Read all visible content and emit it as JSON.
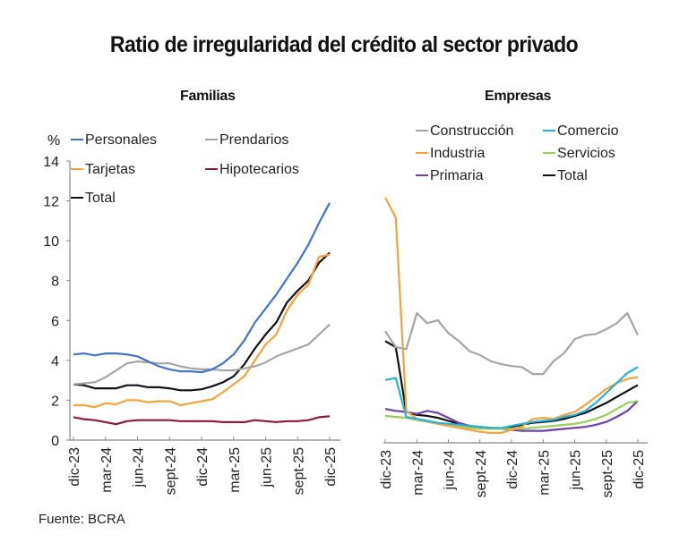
{
  "title": "Ratio de irregularidad del crédito al sector privado",
  "source": "Fuente: BCRA",
  "chart_data": [
    {
      "type": "line",
      "title": "Familias",
      "ylabel": "%",
      "xlabel": "",
      "ylim": [
        0,
        14
      ],
      "yticks": [
        0,
        2,
        4,
        6,
        8,
        10,
        12,
        14
      ],
      "xtick_labels": [
        "dic-23",
        "mar-24",
        "jun-24",
        "sept-24",
        "dic-24",
        "mar-25",
        "jun-25",
        "sept-25",
        "dic-25"
      ],
      "x_periods": 25,
      "grid": false,
      "legend": "top-left",
      "series": [
        {
          "name": "Personales",
          "color": "#4472c4",
          "values": [
            4.3,
            4.35,
            4.25,
            4.35,
            4.35,
            4.3,
            4.2,
            3.95,
            3.7,
            3.55,
            3.45,
            3.45,
            3.4,
            3.55,
            3.85,
            4.3,
            5.0,
            5.9,
            6.6,
            7.3,
            8.1,
            8.9,
            9.8,
            10.9,
            11.9
          ]
        },
        {
          "name": "Prendarios",
          "color": "#a5a5a5",
          "values": [
            2.8,
            2.85,
            2.9,
            3.15,
            3.5,
            3.85,
            3.95,
            3.9,
            3.85,
            3.85,
            3.7,
            3.6,
            3.55,
            3.55,
            3.5,
            3.5,
            3.6,
            3.7,
            3.9,
            4.2,
            4.4,
            4.6,
            4.8,
            5.3,
            5.8
          ]
        },
        {
          "name": "Tarjetas",
          "color": "#f4a23c",
          "values": [
            1.75,
            1.75,
            1.65,
            1.85,
            1.8,
            2.0,
            2.0,
            1.9,
            1.95,
            1.95,
            1.75,
            1.85,
            1.95,
            2.05,
            2.4,
            2.8,
            3.2,
            4.0,
            4.8,
            5.3,
            6.5,
            7.3,
            7.8,
            9.2,
            9.3
          ]
        },
        {
          "name": "Hipotecarios",
          "color": "#8b1a3a",
          "values": [
            1.15,
            1.05,
            1.0,
            0.9,
            0.8,
            0.95,
            1.0,
            1.0,
            1.0,
            1.0,
            0.95,
            0.95,
            0.95,
            0.95,
            0.9,
            0.9,
            0.9,
            1.0,
            0.95,
            0.9,
            0.95,
            0.95,
            1.0,
            1.15,
            1.2
          ]
        },
        {
          "name": "Total",
          "color": "#111111",
          "values": [
            2.8,
            2.75,
            2.6,
            2.6,
            2.6,
            2.75,
            2.75,
            2.65,
            2.65,
            2.6,
            2.5,
            2.5,
            2.55,
            2.7,
            2.9,
            3.2,
            3.8,
            4.6,
            5.3,
            5.9,
            6.9,
            7.5,
            8.0,
            8.9,
            9.4
          ]
        }
      ]
    },
    {
      "type": "line",
      "title": "Empresas",
      "ylabel": "",
      "xlabel": "",
      "ylim": [
        0,
        14
      ],
      "xtick_labels": [
        "dic-23",
        "mar-24",
        "jun-24",
        "sept-24",
        "dic-24",
        "mar-25",
        "jun-25",
        "sept-25",
        "dic-25"
      ],
      "x_periods": 25,
      "grid": false,
      "legend": "top",
      "series": [
        {
          "name": "Construcción",
          "color": "#a5a5a5",
          "values": [
            5.6,
            4.8,
            4.7,
            6.5,
            6.0,
            6.15,
            5.5,
            5.1,
            4.6,
            4.4,
            4.1,
            3.95,
            3.85,
            3.8,
            3.45,
            3.45,
            4.1,
            4.5,
            5.2,
            5.4,
            5.45,
            5.7,
            6.0,
            6.5,
            5.4
          ]
        },
        {
          "name": "Comercio",
          "color": "#2ab0d8",
          "values": [
            3.15,
            3.25,
            1.3,
            1.2,
            1.1,
            1.0,
            0.95,
            0.9,
            0.85,
            0.8,
            0.75,
            0.75,
            0.85,
            0.95,
            1.05,
            1.1,
            1.15,
            1.3,
            1.4,
            1.6,
            2.0,
            2.5,
            3.0,
            3.5,
            3.8
          ]
        },
        {
          "name": "Industria",
          "color": "#f4a23c",
          "values": [
            12.3,
            11.3,
            1.6,
            1.2,
            1.1,
            0.95,
            0.85,
            0.75,
            0.65,
            0.55,
            0.5,
            0.5,
            0.65,
            0.8,
            1.2,
            1.25,
            1.2,
            1.4,
            1.55,
            1.9,
            2.3,
            2.7,
            3.0,
            3.2,
            3.3
          ]
        },
        {
          "name": "Servicios",
          "color": "#9acd5a",
          "values": [
            1.35,
            1.3,
            1.25,
            1.15,
            1.05,
            0.95,
            0.85,
            0.8,
            0.75,
            0.7,
            0.7,
            0.7,
            0.7,
            0.7,
            0.75,
            0.8,
            0.85,
            0.9,
            0.95,
            1.05,
            1.2,
            1.4,
            1.7,
            2.0,
            2.1
          ]
        },
        {
          "name": "Primaria",
          "color": "#7040a8",
          "values": [
            1.7,
            1.6,
            1.55,
            1.45,
            1.6,
            1.5,
            1.25,
            1.0,
            0.85,
            0.8,
            0.75,
            0.7,
            0.65,
            0.6,
            0.6,
            0.6,
            0.65,
            0.7,
            0.75,
            0.8,
            0.9,
            1.05,
            1.3,
            1.6,
            2.1
          ]
        },
        {
          "name": "Total",
          "color": "#111111",
          "values": [
            5.1,
            4.8,
            1.55,
            1.4,
            1.35,
            1.25,
            1.1,
            0.95,
            0.85,
            0.8,
            0.75,
            0.7,
            0.8,
            0.9,
            1.0,
            1.05,
            1.1,
            1.2,
            1.35,
            1.5,
            1.75,
            2.0,
            2.3,
            2.6,
            2.9
          ]
        }
      ]
    }
  ]
}
